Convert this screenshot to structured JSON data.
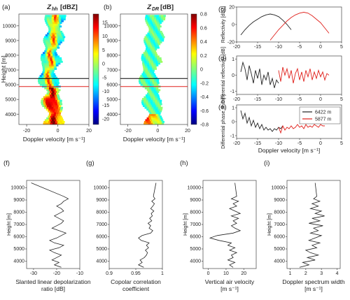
{
  "chart_data": [
    {
      "type": "heatmap",
      "label": "(a)",
      "title_main": "Z",
      "title_sub": "hh",
      "title_unit": "[dBZ]",
      "xlabel": "Doppler velocity [m s⁻¹]",
      "ylabel": "Height [m]",
      "xlim": [
        -25,
        20
      ],
      "ylim": [
        3300,
        10800
      ],
      "xticks": [
        "-20",
        "0",
        "20"
      ],
      "xtick_values": [
        -20,
        0,
        20
      ],
      "yticks": [
        "4000",
        "5000",
        "6000",
        "7000",
        "8000",
        "9000",
        "10000"
      ],
      "ytick_values": [
        4000,
        5000,
        6000,
        7000,
        8000,
        9000,
        10000
      ],
      "colorbar": {
        "min": -22,
        "max": 18,
        "ticks": [
          "15",
          "10",
          "5",
          "0",
          "-5",
          "-10",
          "-15",
          "-20"
        ],
        "tick_values": [
          15,
          10,
          5,
          0,
          -5,
          -10,
          -15,
          -20
        ]
      },
      "hlines": [
        {
          "y": 6422,
          "color": "#000000"
        },
        {
          "y": 5877,
          "color": "#e0201b"
        }
      ],
      "center": [
        [
          3500,
          -3
        ],
        [
          4000,
          -2
        ],
        [
          4500,
          -4
        ],
        [
          5000,
          -5
        ],
        [
          5500,
          -3
        ],
        [
          6000,
          -6
        ],
        [
          6500,
          -7
        ],
        [
          7000,
          -6
        ],
        [
          7500,
          -4
        ],
        [
          8000,
          -6
        ],
        [
          8500,
          -4
        ],
        [
          9000,
          -3
        ],
        [
          9500,
          -2
        ],
        [
          10000,
          -3
        ],
        [
          10500,
          -2
        ]
      ],
      "halfwidth": 5
    },
    {
      "type": "heatmap",
      "label": "(b)",
      "title_main": "Z",
      "title_sub": "DR",
      "title_unit": "[dB]",
      "xlabel": "Doppler velocity [m s⁻¹]",
      "xlim": [
        -25,
        20
      ],
      "ylim": [
        3300,
        10800
      ],
      "xticks": [
        "-20",
        "0",
        "20"
      ],
      "xtick_values": [
        -20,
        0,
        20
      ],
      "yticks": [
        "4000",
        "5000",
        "6000",
        "7000",
        "8000",
        "9000",
        "10000"
      ],
      "ytick_values": [
        4000,
        5000,
        6000,
        7000,
        8000,
        9000,
        10000
      ],
      "colorbar": {
        "min": -0.8,
        "max": 0.8,
        "ticks": [
          "0.8",
          "0.6",
          "0.4",
          "0.2",
          "0",
          "-0.2",
          "-0.4",
          "-0.6",
          "-0.8"
        ],
        "tick_values": [
          0.8,
          0.6,
          0.4,
          0.2,
          0,
          -0.2,
          -0.4,
          -0.6,
          -0.8
        ]
      },
      "hlines": [
        {
          "y": 6422,
          "color": "#000000"
        },
        {
          "y": 5877,
          "color": "#e0201b"
        }
      ],
      "center": [
        [
          3500,
          -3
        ],
        [
          4000,
          -2
        ],
        [
          4500,
          -4
        ],
        [
          5000,
          -5
        ],
        [
          5500,
          -3
        ],
        [
          6000,
          -6
        ],
        [
          6500,
          -7
        ],
        [
          7000,
          -6
        ],
        [
          7500,
          -4
        ],
        [
          8000,
          -6
        ],
        [
          8500,
          -4
        ],
        [
          9000,
          -3
        ],
        [
          9500,
          -2
        ],
        [
          10000,
          -3
        ],
        [
          10500,
          -2
        ]
      ],
      "halfwidth": 5
    },
    {
      "type": "line",
      "label": "(c)",
      "ylabel": "Reflectivity [dBZ]",
      "xlim": [
        -20,
        5
      ],
      "ylim": [
        -20,
        20
      ],
      "yticks": [
        "20",
        "0",
        "-20"
      ],
      "ytick_values": [
        20,
        0,
        -20
      ],
      "series": [
        {
          "color": "#222222",
          "points": [
            [
              -19,
              -12
            ],
            [
              -18,
              -6
            ],
            [
              -17,
              -1
            ],
            [
              -16,
              3
            ],
            [
              -15,
              6
            ],
            [
              -14,
              9
            ],
            [
              -13,
              11
            ],
            [
              -12,
              12
            ],
            [
              -11,
              11
            ],
            [
              -10,
              9
            ],
            [
              -9,
              5
            ],
            [
              -8,
              0
            ],
            [
              -7,
              -6
            ]
          ]
        },
        {
          "color": "#e0201b",
          "points": [
            [
              -12,
              -18
            ],
            [
              -11,
              -12
            ],
            [
              -10,
              -6
            ],
            [
              -9,
              -1
            ],
            [
              -8,
              4
            ],
            [
              -7,
              8
            ],
            [
              -6,
              11
            ],
            [
              -5,
              13
            ],
            [
              -4,
              14
            ],
            [
              -3,
              13
            ],
            [
              -2,
              10
            ],
            [
              -1,
              6
            ],
            [
              0,
              2
            ],
            [
              1,
              -4
            ],
            [
              2,
              -10
            ]
          ]
        }
      ]
    },
    {
      "type": "line",
      "label": "(d)",
      "ylabel": "Differential reflectivity [dB]",
      "xlim": [
        -20,
        5
      ],
      "ylim": [
        -1.2,
        1.2
      ],
      "yticks": [
        "1",
        "0",
        "-1"
      ],
      "ytick_values": [
        1,
        0,
        -1
      ],
      "series": [
        {
          "color": "#222222",
          "points": [
            [
              -19,
              0.2
            ],
            [
              -18.5,
              0.8
            ],
            [
              -18,
              0.4
            ],
            [
              -17.5,
              -0.3
            ],
            [
              -17,
              0.6
            ],
            [
              -16.5,
              0.1
            ],
            [
              -16,
              -0.5
            ],
            [
              -15.5,
              0.3
            ],
            [
              -15,
              -0.2
            ],
            [
              -14.5,
              0.4
            ],
            [
              -14,
              -0.6
            ],
            [
              -13.5,
              0.0
            ],
            [
              -13,
              -0.3
            ],
            [
              -12.5,
              0.2
            ],
            [
              -12,
              -0.6
            ],
            [
              -11.5,
              -0.2
            ],
            [
              -11,
              -0.8
            ],
            [
              -10.5,
              -0.3
            ],
            [
              -10,
              -0.5
            ]
          ]
        },
        {
          "color": "#e0201b",
          "points": [
            [
              -10,
              0.3
            ],
            [
              -9.5,
              -0.4
            ],
            [
              -9,
              0.5
            ],
            [
              -8.5,
              0.0
            ],
            [
              -8,
              0.4
            ],
            [
              -7.5,
              -0.2
            ],
            [
              -7,
              0.3
            ],
            [
              -6.5,
              -0.5
            ],
            [
              -6,
              0.1
            ],
            [
              -5.5,
              0.4
            ],
            [
              -5,
              -0.3
            ],
            [
              -4.5,
              0.2
            ],
            [
              -4,
              -0.4
            ],
            [
              -3.5,
              0.3
            ],
            [
              -3,
              -0.1
            ],
            [
              -2.5,
              0.4
            ],
            [
              -2,
              -0.3
            ],
            [
              -1.5,
              0.2
            ],
            [
              -1,
              -0.2
            ],
            [
              -0.5,
              0.3
            ],
            [
              0,
              -0.1
            ],
            [
              0.5,
              0.2
            ],
            [
              1,
              -0.3
            ],
            [
              1.5,
              0.1
            ],
            [
              2,
              0.0
            ]
          ]
        }
      ]
    },
    {
      "type": "line",
      "label": "(e)",
      "ylabel": "Differential phase shift [°]",
      "xlabel": "Doppler velocity [m s⁻¹]",
      "xlim": [
        -20,
        5
      ],
      "ylim": [
        -1.2,
        1.2
      ],
      "xticks": [
        "-20",
        "-15",
        "-10",
        "-5",
        "0",
        "5"
      ],
      "xtick_values": [
        -20,
        -15,
        -10,
        -5,
        0,
        5
      ],
      "yticks": [
        "1",
        "0",
        "-1"
      ],
      "ytick_values": [
        1,
        0,
        -1
      ],
      "legend": [
        "6422 m",
        "5877 m"
      ],
      "series": [
        {
          "name": "6422 m",
          "color": "#222222",
          "points": [
            [
              -19,
              0.8
            ],
            [
              -18.5,
              0.2
            ],
            [
              -18,
              0.6
            ],
            [
              -17.5,
              -0.1
            ],
            [
              -17,
              0.3
            ],
            [
              -16.5,
              -0.3
            ],
            [
              -16,
              0.1
            ],
            [
              -15.5,
              -0.4
            ],
            [
              -15,
              -0.1
            ],
            [
              -14.5,
              -0.5
            ],
            [
              -14,
              -0.2
            ],
            [
              -13.5,
              -0.6
            ],
            [
              -13,
              -0.4
            ],
            [
              -12.5,
              -0.6
            ],
            [
              -12,
              -0.5
            ],
            [
              -11.5,
              -0.7
            ],
            [
              -11,
              -0.5
            ],
            [
              -10.5,
              -0.6
            ],
            [
              -10,
              -0.4
            ],
            [
              -9.5,
              -0.5
            ],
            [
              -9,
              -0.3
            ]
          ]
        },
        {
          "name": "5877 m",
          "color": "#e0201b",
          "points": [
            [
              -10,
              -0.4
            ],
            [
              -9.5,
              -0.8
            ],
            [
              -9,
              -0.3
            ],
            [
              -8.5,
              -0.6
            ],
            [
              -8,
              -0.4
            ],
            [
              -7.5,
              -0.5
            ],
            [
              -7,
              -0.3
            ],
            [
              -6.5,
              -0.5
            ],
            [
              -6,
              -0.4
            ],
            [
              -5.5,
              -0.2
            ],
            [
              -5,
              -0.4
            ],
            [
              -4.5,
              -0.3
            ],
            [
              -4,
              -0.5
            ],
            [
              -3.5,
              -0.2
            ],
            [
              -3,
              -0.4
            ],
            [
              -2.5,
              -0.3
            ],
            [
              -2,
              -0.4
            ],
            [
              -1.5,
              -0.2
            ],
            [
              -1,
              -0.3
            ],
            [
              -0.5,
              -0.4
            ],
            [
              0,
              -0.2
            ],
            [
              0.5,
              -0.3
            ],
            [
              1,
              -0.3
            ]
          ]
        }
      ]
    },
    {
      "type": "line",
      "label": "(f)",
      "xlabel": "Slanted linear depolarization ratio [dB]",
      "ylabel": "Height [m]",
      "xlim": [
        -33,
        -10
      ],
      "ylim": [
        3400,
        10600
      ],
      "xticks": [
        "-30",
        "-20",
        "-10"
      ],
      "xtick_values": [
        -30,
        -20,
        -10
      ],
      "yticks": [
        "4000",
        "5000",
        "6000",
        "7000",
        "8000",
        "9000",
        "10000"
      ],
      "ytick_values": [
        4000,
        5000,
        6000,
        7000,
        8000,
        9000,
        10000
      ],
      "values_x": [
        -18,
        -21,
        -19,
        -22,
        -20,
        -18,
        -21,
        -23,
        -19,
        -17,
        -21,
        -23,
        -20,
        -18,
        -16,
        -19,
        -22,
        -20,
        -18,
        -17,
        -19,
        -21,
        -19,
        -17,
        -18,
        -20,
        -18,
        -17,
        -15,
        -17,
        -31
      ],
      "heights": [
        3500,
        3700,
        3900,
        4100,
        4300,
        4500,
        4700,
        4900,
        5100,
        5300,
        5500,
        5700,
        5900,
        6100,
        6300,
        6500,
        6700,
        6900,
        7100,
        7300,
        7500,
        7700,
        7900,
        8100,
        8300,
        8500,
        8700,
        8900,
        9100,
        9300,
        10400
      ]
    },
    {
      "type": "line",
      "label": "(g)",
      "xlabel": "Copolar correlation coefficient",
      "xlim": [
        0.9,
        1.0
      ],
      "ylim": [
        3400,
        10600
      ],
      "xticks": [
        "0.9",
        "0.95",
        "1"
      ],
      "xtick_values": [
        0.9,
        0.95,
        1.0
      ],
      "yticks": [
        "4000",
        "5000",
        "6000",
        "7000",
        "8000",
        "9000",
        "10000"
      ],
      "ytick_values": [
        4000,
        5000,
        6000,
        7000,
        8000,
        9000,
        10000
      ],
      "values_x": [
        0.965,
        0.955,
        0.962,
        0.958,
        0.966,
        0.97,
        0.972,
        0.968,
        0.974,
        0.97,
        0.975,
        0.96,
        0.955,
        0.962,
        0.978,
        0.982,
        0.975,
        0.978,
        0.973,
        0.98,
        0.976,
        0.981,
        0.979,
        0.984,
        0.978,
        0.982,
        0.985,
        0.98,
        0.986,
        0.983,
        0.988
      ],
      "heights": [
        3500,
        3700,
        3900,
        4100,
        4300,
        4500,
        4700,
        4900,
        5100,
        5300,
        5500,
        5700,
        5900,
        6100,
        6300,
        6500,
        6700,
        6900,
        7100,
        7300,
        7500,
        7700,
        7900,
        8100,
        8300,
        8500,
        8700,
        8900,
        9100,
        9300,
        10400
      ]
    },
    {
      "type": "line",
      "label": "(h)",
      "xlabel": "Vertical air velocity [m s⁻¹]",
      "ylabel": "Height [m]",
      "xlim": [
        -3,
        27
      ],
      "ylim": [
        3400,
        10600
      ],
      "xticks": [
        "0",
        "10",
        "20"
      ],
      "xtick_values": [
        0,
        10,
        20
      ],
      "yticks": [
        "4000",
        "5000",
        "6000",
        "7000",
        "8000",
        "9000",
        "10000"
      ],
      "ytick_values": [
        4000,
        5000,
        6000,
        7000,
        8000,
        9000,
        10000
      ],
      "values_x": [
        14,
        12,
        15,
        11,
        14,
        13,
        16,
        12,
        15,
        11,
        13,
        6,
        1,
        5,
        14,
        18,
        15,
        13,
        16,
        14,
        17,
        13,
        18,
        15,
        12,
        16,
        14,
        17,
        13,
        16,
        15
      ],
      "heights": [
        3500,
        3700,
        3900,
        4100,
        4300,
        4500,
        4700,
        4900,
        5100,
        5300,
        5500,
        5700,
        5900,
        6100,
        6300,
        6500,
        6700,
        6900,
        7100,
        7300,
        7500,
        7700,
        7900,
        8100,
        8300,
        8500,
        8700,
        8900,
        9100,
        9300,
        10400
      ]
    },
    {
      "type": "line",
      "label": "(i)",
      "xlabel": "Doppler spectrum width [m s⁻¹]",
      "ylabel": "Height [m]",
      "xlim": [
        0.8,
        4.2
      ],
      "ylim": [
        3400,
        10600
      ],
      "xticks": [
        "1",
        "2",
        "3",
        "4"
      ],
      "xtick_values": [
        1,
        2,
        3,
        4
      ],
      "yticks": [
        "4000",
        "5000",
        "6000",
        "7000",
        "8000",
        "9000",
        "10000"
      ],
      "ytick_values": [
        4000,
        5000,
        6000,
        7000,
        8000,
        9000,
        10000
      ],
      "values_x": [
        1.6,
        2.2,
        1.8,
        2.6,
        2.1,
        2.8,
        2.3,
        2.0,
        2.7,
        2.4,
        2.9,
        2.2,
        2.6,
        3.0,
        2.3,
        2.8,
        2.5,
        3.1,
        2.2,
        2.9,
        2.4,
        3.2,
        2.6,
        3.0,
        2.3,
        2.8,
        2.4,
        2.9,
        2.5,
        2.7,
        2.6
      ],
      "heights": [
        3500,
        3700,
        3900,
        4100,
        4300,
        4500,
        4700,
        4900,
        5100,
        5300,
        5500,
        5700,
        5900,
        6100,
        6300,
        6500,
        6700,
        6900,
        7100,
        7300,
        7500,
        7700,
        7900,
        8100,
        8300,
        8500,
        8700,
        8900,
        9100,
        9300,
        10400
      ]
    }
  ]
}
